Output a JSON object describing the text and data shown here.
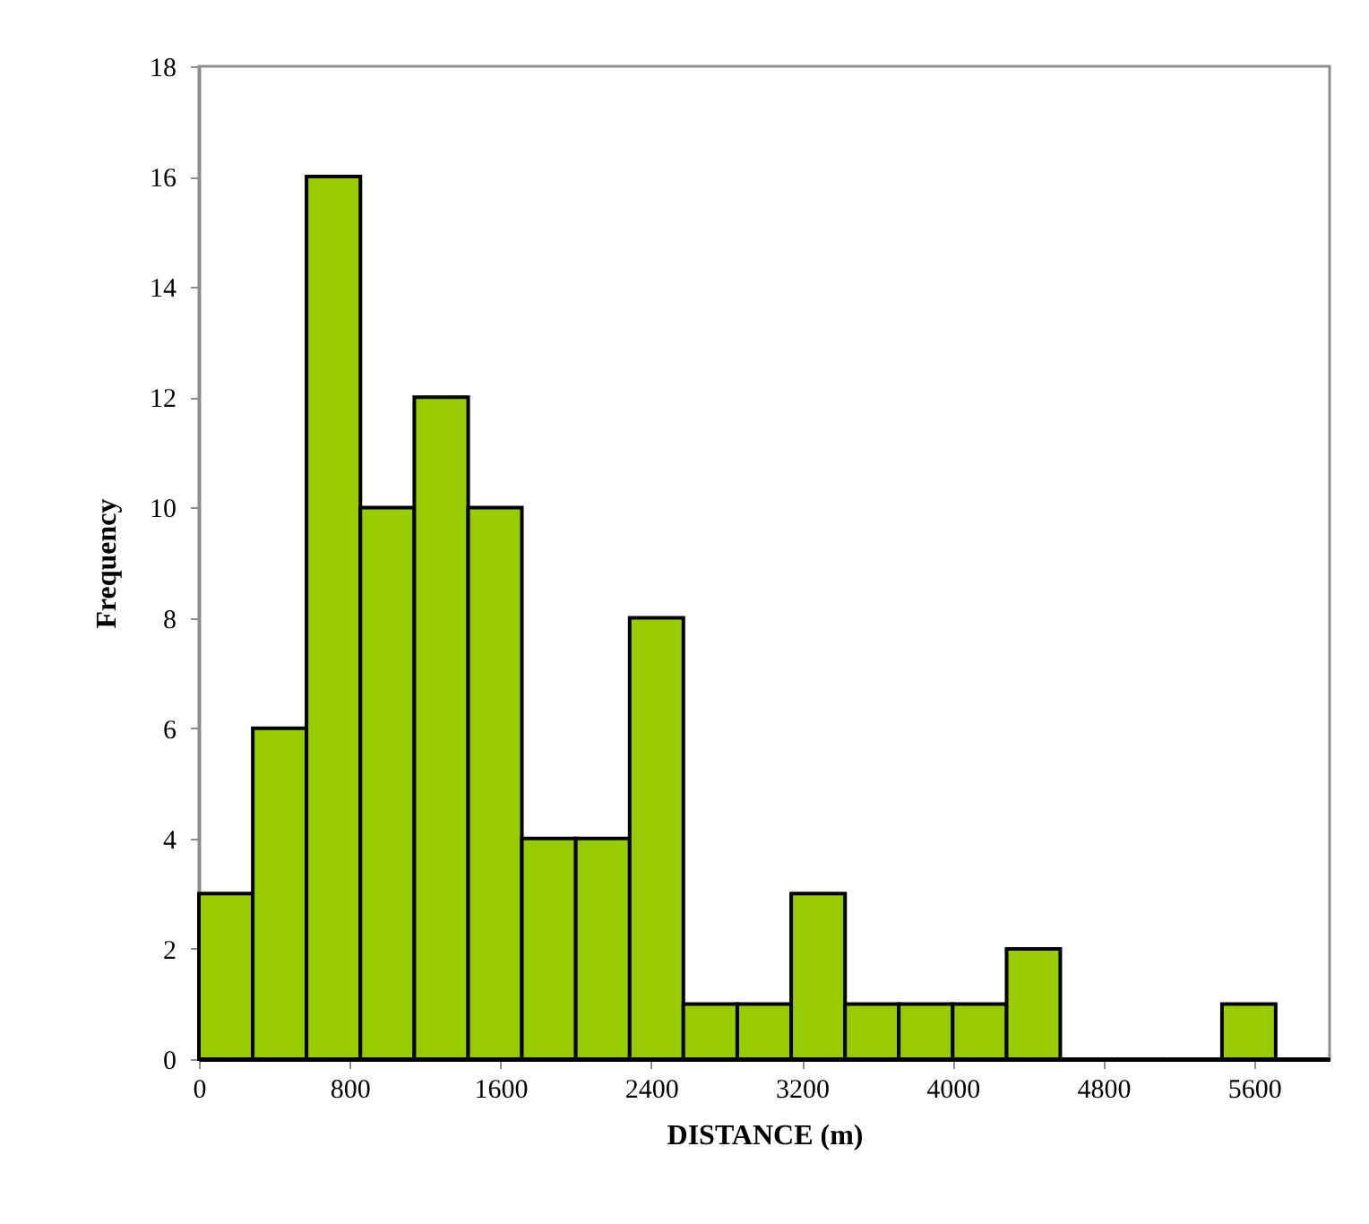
{
  "chart_data": {
    "type": "histogram",
    "xlabel": "DISTANCE (m)",
    "ylabel": "Frequency",
    "color": "#99cc00",
    "bins": [
      0,
      286,
      571,
      857,
      1143,
      1429,
      1714,
      2000,
      2286,
      2571,
      2857,
      3143,
      3429,
      3714,
      4000,
      4286,
      4571,
      4857,
      5143,
      5429,
      5714,
      6000
    ],
    "values": [
      3,
      6,
      16,
      10,
      12,
      10,
      4,
      4,
      8,
      1,
      1,
      3,
      1,
      1,
      1,
      2,
      0,
      0,
      0,
      1,
      0
    ],
    "xlim": [
      0,
      6000
    ],
    "xticks": [
      0,
      800,
      1600,
      2400,
      3200,
      4000,
      4800,
      5600
    ],
    "ylim": [
      0,
      18
    ],
    "yticks": [
      0,
      2,
      4,
      6,
      8,
      10,
      12,
      14,
      16,
      18
    ],
    "grid": false
  }
}
